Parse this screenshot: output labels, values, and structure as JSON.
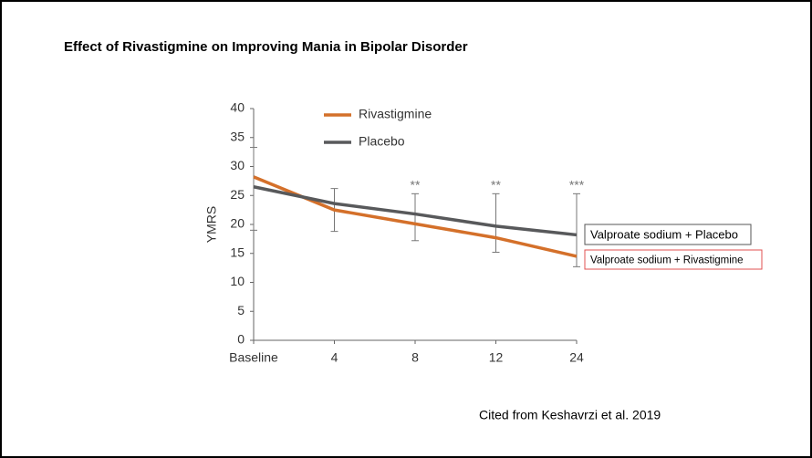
{
  "chart_data": {
    "type": "line",
    "title": "Effect of Rivastigmine on Improving Mania in Bipolar Disorder",
    "y_label": "YMRS",
    "categories": [
      "Baseline",
      "4",
      "8",
      "12",
      "24"
    ],
    "series": [
      {
        "name": "Rivastigmine",
        "color": "#d4702a",
        "values": [
          28.2,
          22.5,
          20.1,
          17.7,
          14.5
        ]
      },
      {
        "name": "Placebo",
        "color": "#58595b",
        "values": [
          26.5,
          23.6,
          21.8,
          19.7,
          18.2
        ]
      }
    ],
    "error_bars": [
      {
        "low": 19,
        "high": 33.3
      },
      {
        "low": 18.8,
        "high": 26.2
      },
      {
        "low": 17.2,
        "high": 25.3
      },
      {
        "low": 15.2,
        "high": 25.3
      },
      {
        "low": 12.7,
        "high": 25.3
      }
    ],
    "significance": [
      {
        "at": "8",
        "label": "**"
      },
      {
        "at": "12",
        "label": "**"
      },
      {
        "at": "24",
        "label": "***"
      }
    ],
    "annotations": [
      {
        "text": "Valproate sodium + Placebo",
        "border": "#555555"
      },
      {
        "text": "Valproate sodium + Rivastigmine",
        "border": "#e05050"
      }
    ],
    "source": "Cited from Keshavrzi et al. 2019",
    "ylim": [
      0,
      40
    ],
    "yticks": [
      0,
      5,
      10,
      15,
      20,
      25,
      30,
      35,
      40
    ]
  }
}
